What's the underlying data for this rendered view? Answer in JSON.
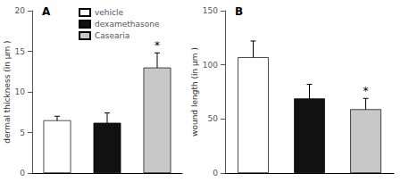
{
  "chart_data": [
    {
      "type": "bar",
      "title": "A",
      "categories": [
        "vehicle",
        "dexamethasone",
        "Casearia"
      ],
      "values": [
        6.5,
        6.2,
        13.0
      ],
      "errors": [
        0.5,
        1.2,
        1.8
      ],
      "colors": [
        "#ffffff",
        "#111111",
        "#c8c8c8"
      ],
      "ylabel": "dermal thickness (in μm )",
      "ylim": [
        0,
        20
      ],
      "yticks": [
        0,
        5,
        10,
        15,
        20
      ],
      "annotations": [
        {
          "category": "Casearia",
          "text": "*"
        }
      ],
      "tick_labels": "y",
      "grid": false,
      "legend": "upper left"
    },
    {
      "type": "bar",
      "title": "B",
      "categories": [
        "vehicle",
        "dexamethasone",
        "Casearia"
      ],
      "values": [
        107,
        69,
        59
      ],
      "errors": [
        15,
        13,
        10
      ],
      "colors": [
        "#ffffff",
        "#111111",
        "#c8c8c8"
      ],
      "ylabel": "wound length (in μm )",
      "ylim": [
        0,
        150
      ],
      "yticks": [
        0,
        50,
        100,
        150
      ],
      "annotations": [
        {
          "category": "Casearia",
          "text": "*"
        }
      ],
      "tick_labels": "y",
      "grid": false
    }
  ]
}
